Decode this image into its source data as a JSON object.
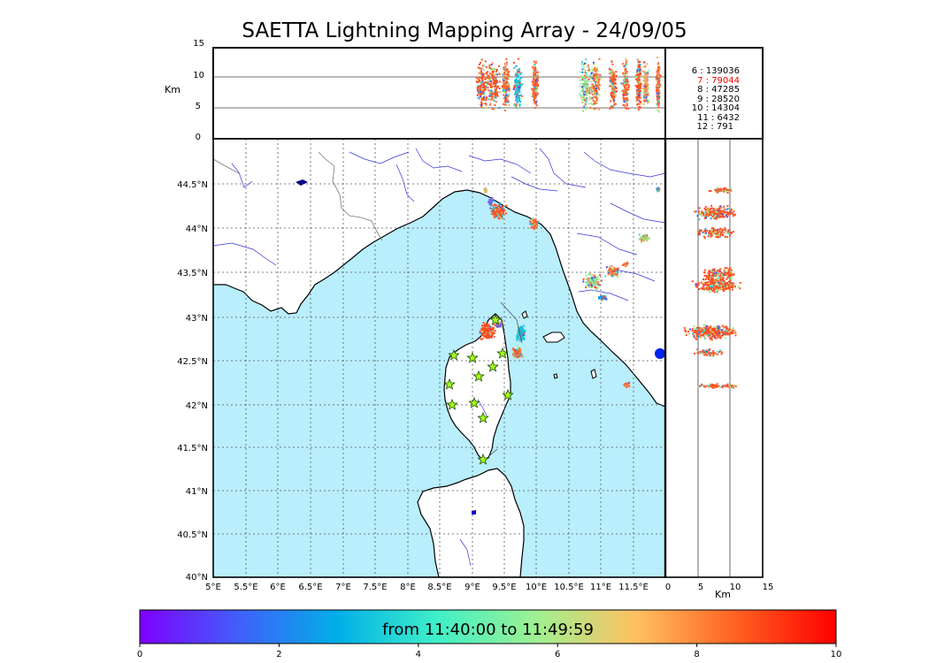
{
  "title": "SAETTA Lightning Mapping Array - 24/09/05",
  "altitude_panel": {
    "unit_label": "Km",
    "ticks": [
      "15",
      "10",
      "5",
      "0"
    ],
    "counts": [
      {
        "label": "6  :   139036",
        "color": "#000000"
      },
      {
        "label": "7  :    79044",
        "color": "#ff0000"
      },
      {
        "label": "8  :    47285",
        "color": "#000000"
      },
      {
        "label": "9  :    28520",
        "color": "#000000"
      },
      {
        "label": "10  :    14304",
        "color": "#000000"
      },
      {
        "label": "11  :     6432",
        "color": "#000000"
      },
      {
        "label": "12  :      791",
        "color": "#000000"
      }
    ]
  },
  "map": {
    "lat_ticks": [
      "44.5°N",
      "44°N",
      "43.5°N",
      "43°N",
      "42.5°N",
      "42°N",
      "41.5°N",
      "41°N",
      "40.5°N",
      "40°N"
    ],
    "lon_ticks": [
      "5°E",
      "5.5°E",
      "6°E",
      "6.5°E",
      "7°E",
      "7.5°E",
      "8°E",
      "8.5°E",
      "9°E",
      "9.5°E",
      "10°E",
      "10.5°E",
      "11°E",
      "11.5°E"
    ],
    "colors": {
      "sea": "#b9eefc",
      "land": "#ffffff",
      "rivers": "#3333dd",
      "grid": "#555555",
      "station": "#a4ff1e"
    },
    "station_icon": "star-icon"
  },
  "side_panel": {
    "ticks": [
      "0",
      "5",
      "10",
      "15"
    ],
    "unit_label": "Km"
  },
  "colorbar": {
    "label": "from 11:40:00 to 11:49:59",
    "ticks": [
      "0",
      "2",
      "4",
      "6",
      "8",
      "10"
    ],
    "gradient": [
      "#7f00ff",
      "#4060fa",
      "#00b0e8",
      "#40f0c8",
      "#a0f090",
      "#ffc060",
      "#ff6020",
      "#ff0000"
    ]
  }
}
